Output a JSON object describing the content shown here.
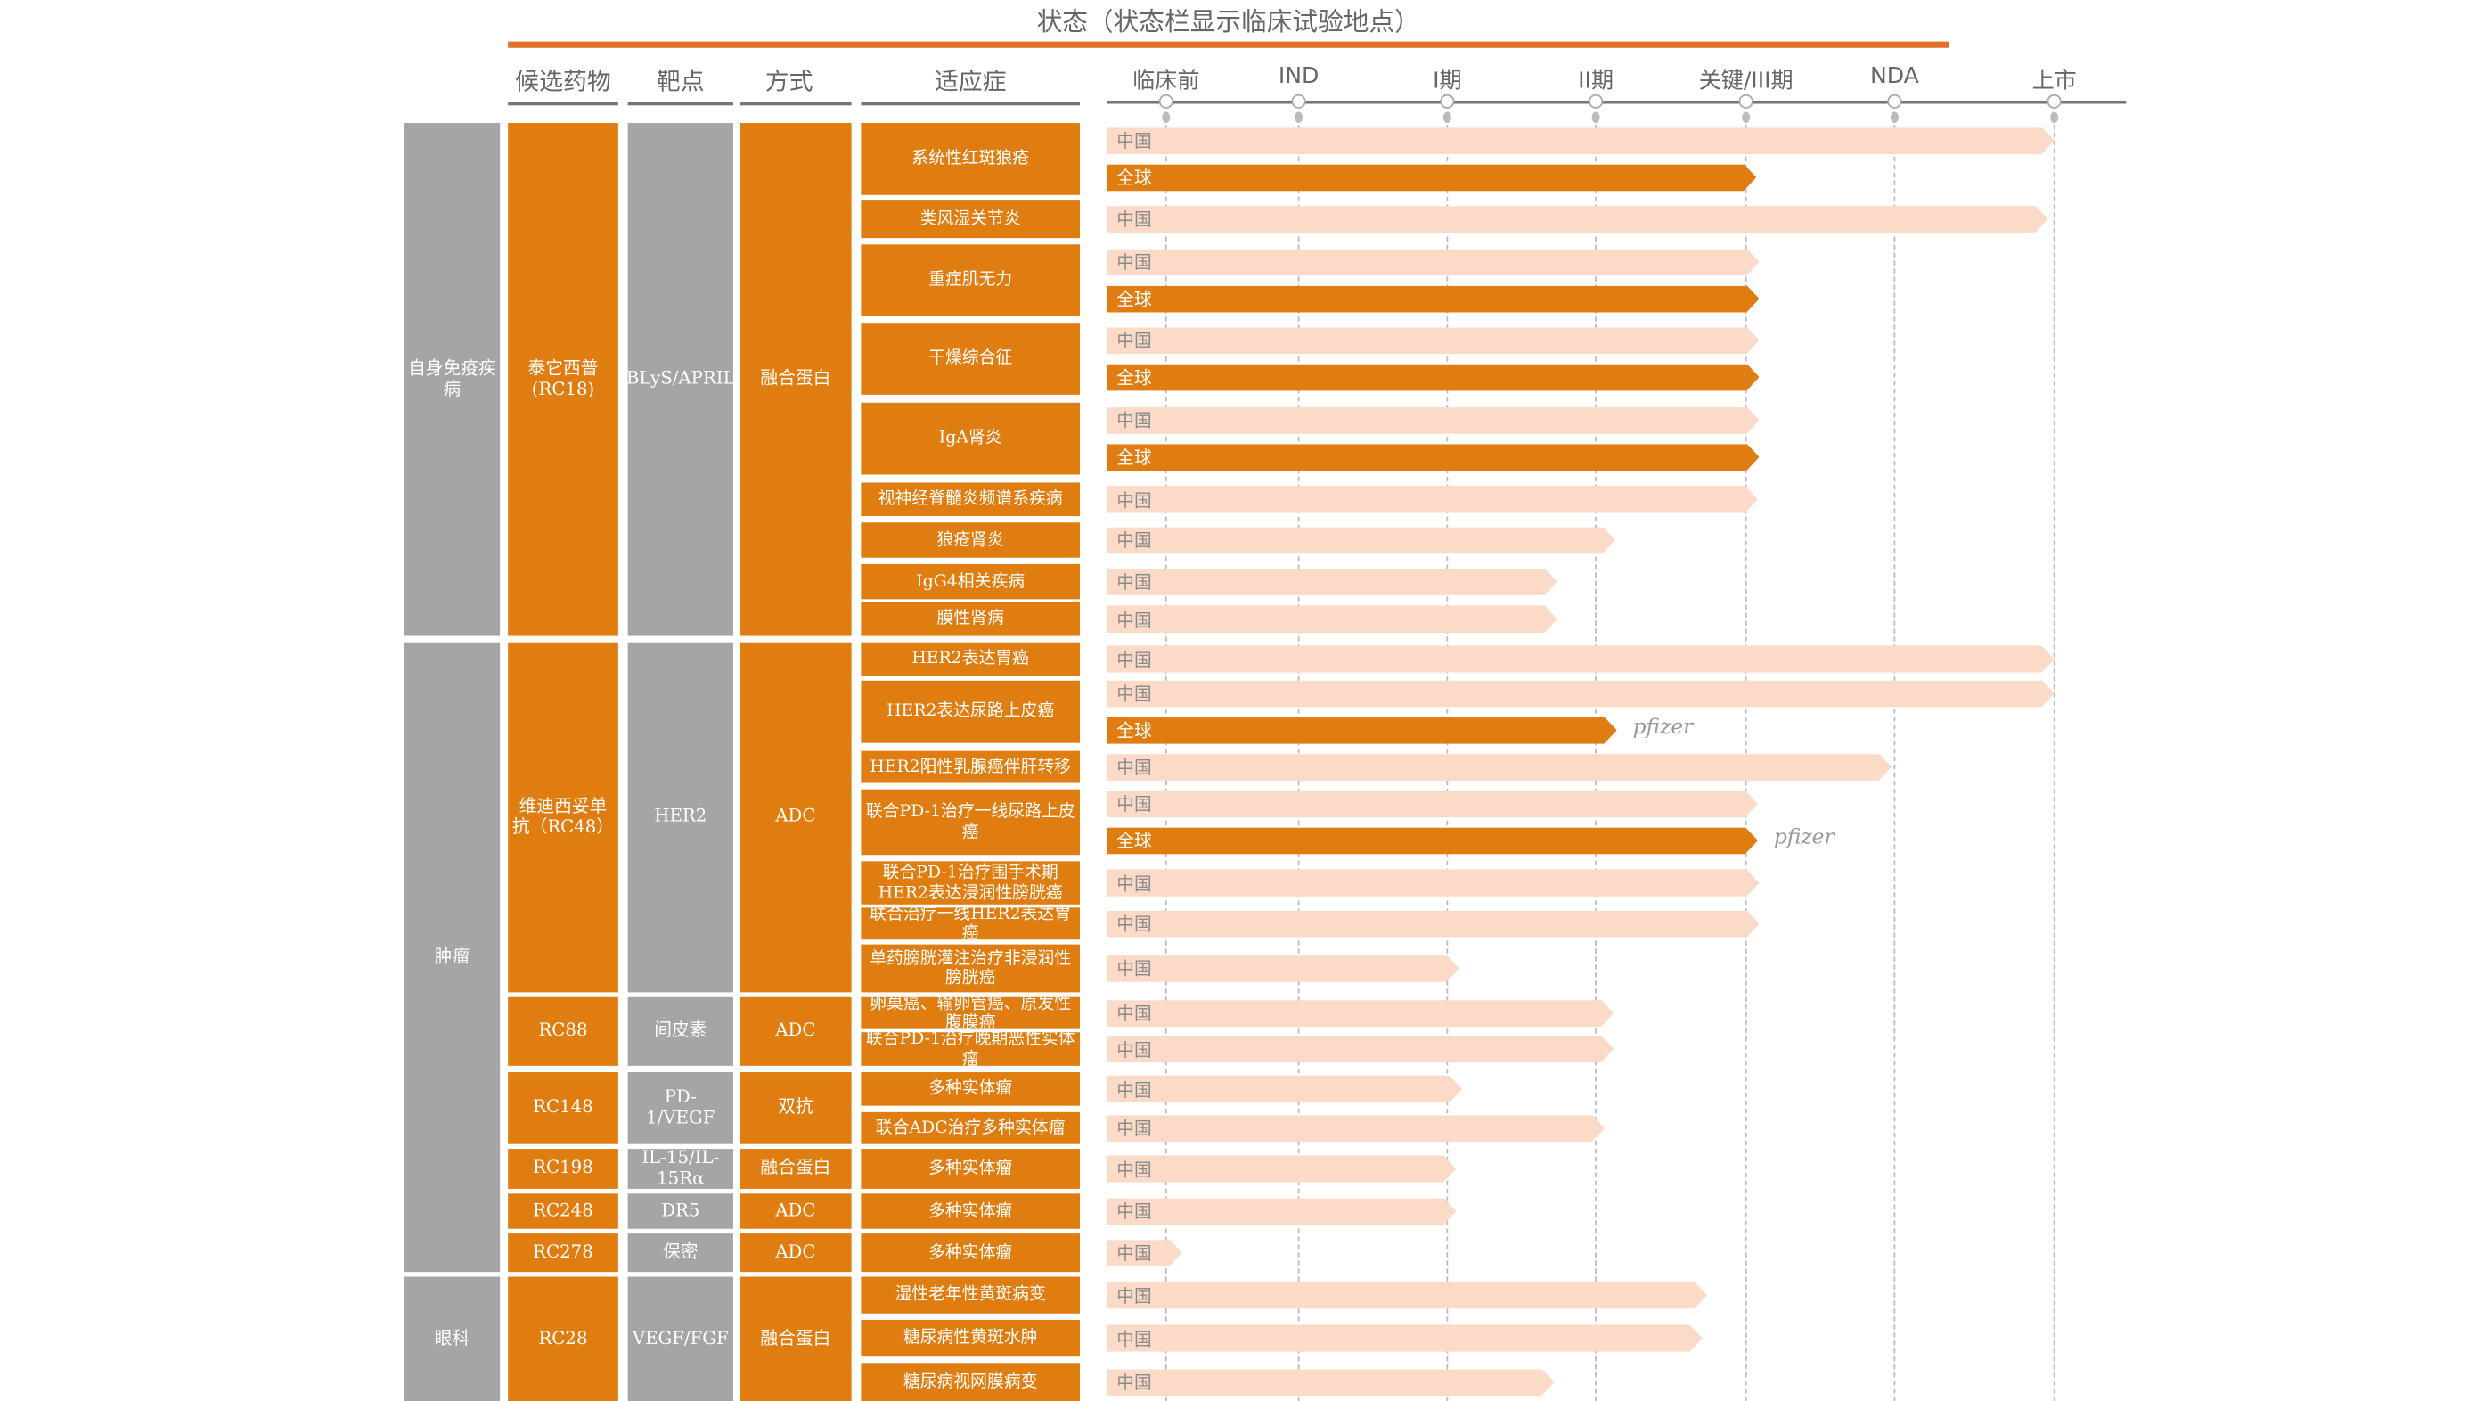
{
  "title": "状态（状态栏显示临床试验地点）",
  "columns": {
    "drug": "候选药物",
    "target": "靶点",
    "modality": "方式",
    "indication": "适应症"
  },
  "stages": [
    "临床前",
    "IND",
    "I期",
    "II期",
    "关键/III期",
    "NDA",
    "上市"
  ],
  "colors": {
    "orange": "#e07d11",
    "pale": "#fbdac7",
    "gray": "#a5a5a5",
    "rule": "#e26f2a"
  },
  "areas": [
    {
      "label": "自身免疫疾病",
      "span": 9
    },
    {
      "label": "肿瘤",
      "span": 14
    },
    {
      "label": "眼科",
      "span": 3
    }
  ],
  "drugs": [
    {
      "name": "泰它西普\n(RC18)",
      "target": "BLyS/APRIL",
      "modality": "融合蛋白",
      "span": 9
    },
    {
      "name": "维迪西妥单\n抗（RC48）",
      "target": "HER2",
      "modality": "ADC",
      "span": 7
    },
    {
      "name": "RC88",
      "target": "间皮素",
      "modality": "ADC",
      "span": 2
    },
    {
      "name": "RC148",
      "target": "PD-1/VEGF",
      "modality": "双抗",
      "span": 2
    },
    {
      "name": "RC198",
      "target": "IL-15/IL-\n15Rα",
      "modality": "融合蛋白",
      "span": 1
    },
    {
      "name": "RC248",
      "target": "DR5",
      "modality": "ADC",
      "span": 1
    },
    {
      "name": "RC278",
      "target": "保密",
      "modality": "ADC",
      "span": 1
    },
    {
      "name": "RC28",
      "target": "VEGF/FGF",
      "modality": "融合蛋白",
      "span": 3
    }
  ],
  "chart_data": {
    "type": "bar",
    "orientation": "horizontal",
    "x_axis": "stage index (0=临床前 … 6=上市)",
    "indications": [
      {
        "name": "系统性红斑狼疮",
        "bars": [
          {
            "region": "中国",
            "stage": 6.0
          },
          {
            "region": "全球",
            "stage": 4.07
          }
        ]
      },
      {
        "name": "类风湿关节炎",
        "bars": [
          {
            "region": "中国",
            "stage": 5.96
          }
        ]
      },
      {
        "name": "重症肌无力",
        "bars": [
          {
            "region": "中国",
            "stage": 4.09
          },
          {
            "region": "全球",
            "stage": 4.09
          }
        ]
      },
      {
        "name": "干燥综合征",
        "bars": [
          {
            "region": "中国",
            "stage": 4.09
          },
          {
            "region": "全球",
            "stage": 4.09
          }
        ]
      },
      {
        "name": "IgA肾炎",
        "bars": [
          {
            "region": "中国",
            "stage": 4.09
          },
          {
            "region": "全球",
            "stage": 4.09
          }
        ]
      },
      {
        "name": "视神经脊髓炎频谱系疾病",
        "bars": [
          {
            "region": "中国",
            "stage": 4.08
          }
        ]
      },
      {
        "name": "狼疮肾炎",
        "bars": [
          {
            "region": "中国",
            "stage": 3.13
          }
        ]
      },
      {
        "name": "IgG4相关疾病",
        "bars": [
          {
            "region": "中国",
            "stage": 2.74
          }
        ]
      },
      {
        "name": "膜性肾病",
        "bars": [
          {
            "region": "中国",
            "stage": 2.74
          }
        ]
      },
      {
        "name": "HER2表达胃癌",
        "bars": [
          {
            "region": "中国",
            "stage": 6.0
          }
        ]
      },
      {
        "name": "HER2表达尿路上皮癌",
        "bars": [
          {
            "region": "中国",
            "stage": 6.0
          },
          {
            "region": "全球",
            "stage": 3.14,
            "note": "pfizer"
          }
        ]
      },
      {
        "name": "HER2阳性乳腺癌伴肝转移",
        "bars": [
          {
            "region": "中国",
            "stage": 4.98
          }
        ]
      },
      {
        "name": "联合PD-1治疗一线尿路上皮癌",
        "bars": [
          {
            "region": "中国",
            "stage": 4.08
          },
          {
            "region": "全球",
            "stage": 4.08,
            "note": "pfizer"
          }
        ]
      },
      {
        "name": "联合PD-1治疗围手术期HER2表达浸润性膀胱癌",
        "bars": [
          {
            "region": "中国",
            "stage": 4.09
          }
        ]
      },
      {
        "name": "联合治疗一线HER2表达胃癌",
        "bars": [
          {
            "region": "中国",
            "stage": 4.09
          }
        ]
      },
      {
        "name": "单药膀胱灌注治疗非浸润性膀胱癌",
        "bars": [
          {
            "region": "中国",
            "stage": 2.08
          }
        ]
      },
      {
        "name": "卵巢癌、输卵管癌、原发性腹膜癌",
        "bars": [
          {
            "region": "中国",
            "stage": 3.12
          }
        ]
      },
      {
        "name": "联合PD-1治疗晚期恶性实体瘤",
        "bars": [
          {
            "region": "中国",
            "stage": 3.12
          }
        ]
      },
      {
        "name": "多种实体瘤",
        "bars": [
          {
            "region": "中国",
            "stage": 2.1
          }
        ]
      },
      {
        "name": "联合ADC治疗多种实体瘤",
        "bars": [
          {
            "region": "中国",
            "stage": 3.06
          }
        ]
      },
      {
        "name": "多种实体瘤",
        "bars": [
          {
            "region": "中国",
            "stage": 2.06
          }
        ]
      },
      {
        "name": "多种实体瘤",
        "bars": [
          {
            "region": "中国",
            "stage": 2.06
          }
        ]
      },
      {
        "name": "多种实体瘤",
        "bars": [
          {
            "region": "中国",
            "stage": 0.12
          }
        ]
      },
      {
        "name": "湿性老年性黄斑病变",
        "bars": [
          {
            "region": "中国",
            "stage": 3.74
          }
        ]
      },
      {
        "name": "糖尿病性黄斑水肿",
        "bars": [
          {
            "region": "中国",
            "stage": 3.71
          }
        ]
      },
      {
        "name": "糖尿病视网膜病变",
        "bars": [
          {
            "region": "中国",
            "stage": 2.72
          }
        ]
      }
    ]
  }
}
